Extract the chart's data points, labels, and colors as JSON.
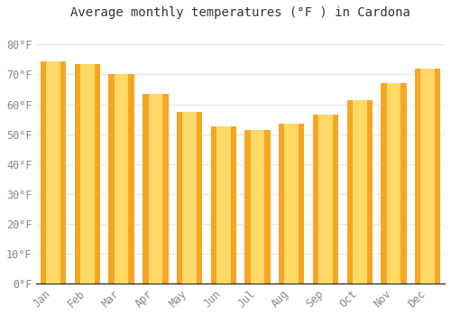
{
  "title": "Average monthly temperatures (°F ) in Cardona",
  "months": [
    "Jan",
    "Feb",
    "Mar",
    "Apr",
    "May",
    "Jun",
    "Jul",
    "Aug",
    "Sep",
    "Oct",
    "Nov",
    "Dec"
  ],
  "values": [
    74.5,
    73.5,
    70.0,
    63.5,
    57.5,
    52.5,
    51.5,
    53.5,
    56.5,
    61.5,
    67.0,
    72.0
  ],
  "bar_color_center": "#FFD966",
  "bar_color_edge": "#F5A623",
  "background_color": "#FFFFFF",
  "grid_color": "#E8E8E8",
  "ylim": [
    0,
    87
  ],
  "yticks": [
    0,
    10,
    20,
    30,
    40,
    50,
    60,
    70,
    80
  ],
  "ytick_labels": [
    "0°F",
    "10°F",
    "20°F",
    "30°F",
    "40°F",
    "50°F",
    "60°F",
    "70°F",
    "80°F"
  ],
  "title_fontsize": 10,
  "tick_fontsize": 8.5,
  "font_family": "monospace",
  "tick_color": "#888888",
  "spine_color": "#333333"
}
